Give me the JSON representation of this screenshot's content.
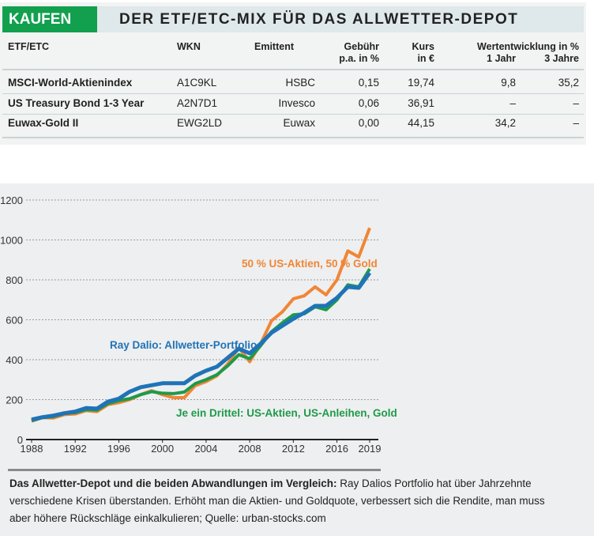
{
  "table": {
    "badge": "KAUFEN",
    "title": "DER ETF/ETC-MIX FÜR DAS ALLWETTER-DEPOT",
    "headers": {
      "name": "ETF/ETC",
      "wkn": "WKN",
      "issuer": "Emittent",
      "fee": "Gebühr",
      "fee2": "p.a. in %",
      "price": "Kurs",
      "price2": "in €",
      "perf": "Wertentwicklung in %",
      "perf1": "1 Jahr",
      "perf3": "3 Jahre"
    },
    "rows": [
      {
        "name": "MSCI-World-Aktienindex",
        "wkn": "A1C9KL",
        "issuer": "HSBC",
        "fee": "0,15",
        "price": "19,74",
        "perf1": "9,8",
        "perf3": "35,2"
      },
      {
        "name": "US Treasury Bond 1-3 Year",
        "wkn": "A2N7D1",
        "issuer": "Invesco",
        "fee": "0,06",
        "price": "36,91",
        "perf1": "–",
        "perf3": "–"
      },
      {
        "name": "Euwax-Gold II",
        "wkn": "EWG2LD",
        "issuer": "Euwax",
        "fee": "0,00",
        "price": "44,15",
        "perf1": "34,2",
        "perf3": "–"
      }
    ],
    "colors": {
      "badge": "#12a04f",
      "header_band": "#dfe8ea"
    }
  },
  "chart_data": {
    "type": "line",
    "x": [
      1988,
      1989,
      1990,
      1991,
      1992,
      1993,
      1994,
      1995,
      1996,
      1997,
      1998,
      1999,
      2000,
      2001,
      2002,
      2003,
      2004,
      2005,
      2006,
      2007,
      2008,
      2009,
      2010,
      2011,
      2012,
      2013,
      2014,
      2015,
      2016,
      2017,
      2018,
      2019
    ],
    "x_ticks": [
      "1988",
      "1992",
      "1996",
      "2000",
      "2004",
      "2008",
      "2012",
      "2016",
      "2019"
    ],
    "y_ticks": [
      "0",
      "200",
      "400",
      "600",
      "800",
      "1000",
      "1200"
    ],
    "ylim": [
      0,
      1200
    ],
    "grid": "horizontal dotted",
    "series": [
      {
        "name": "Ray Dalio: Allwetter-Portfolio",
        "color": "#1f73b7",
        "values": [
          100,
          112,
          120,
          132,
          140,
          158,
          155,
          190,
          205,
          240,
          262,
          272,
          282,
          282,
          282,
          320,
          345,
          365,
          410,
          455,
          432,
          480,
          535,
          570,
          605,
          635,
          670,
          670,
          710,
          765,
          760,
          835
        ]
      },
      {
        "name": "50 % US-Aktien, 50 % Gold",
        "color": "#f08636",
        "values": [
          92,
          110,
          108,
          125,
          128,
          145,
          140,
          175,
          185,
          200,
          225,
          245,
          225,
          210,
          210,
          270,
          290,
          320,
          380,
          460,
          390,
          480,
          595,
          640,
          705,
          720,
          765,
          725,
          800,
          945,
          915,
          1060
        ]
      },
      {
        "name": "Je ein Drittel: US-Aktien, US-Anleihen, Gold",
        "color": "#1e9a4a",
        "values": [
          95,
          110,
          115,
          130,
          135,
          150,
          148,
          180,
          195,
          205,
          225,
          240,
          232,
          230,
          238,
          280,
          300,
          325,
          370,
          425,
          405,
          470,
          540,
          585,
          625,
          630,
          665,
          650,
          700,
          775,
          765,
          855
        ]
      }
    ]
  },
  "caption": {
    "bold": "Das Allwetter-Depot und die beiden Abwandlungen im Vergleich:",
    "text": " Ray Dalios Portfolio hat über Jahrzehnte verschiedene Krisen überstanden. Erhöht man die Aktien- und Goldquote, verbessert sich die Rendite, man muss aber höhere Rückschläge einkalkulieren; Quelle: urban-stocks.com"
  }
}
